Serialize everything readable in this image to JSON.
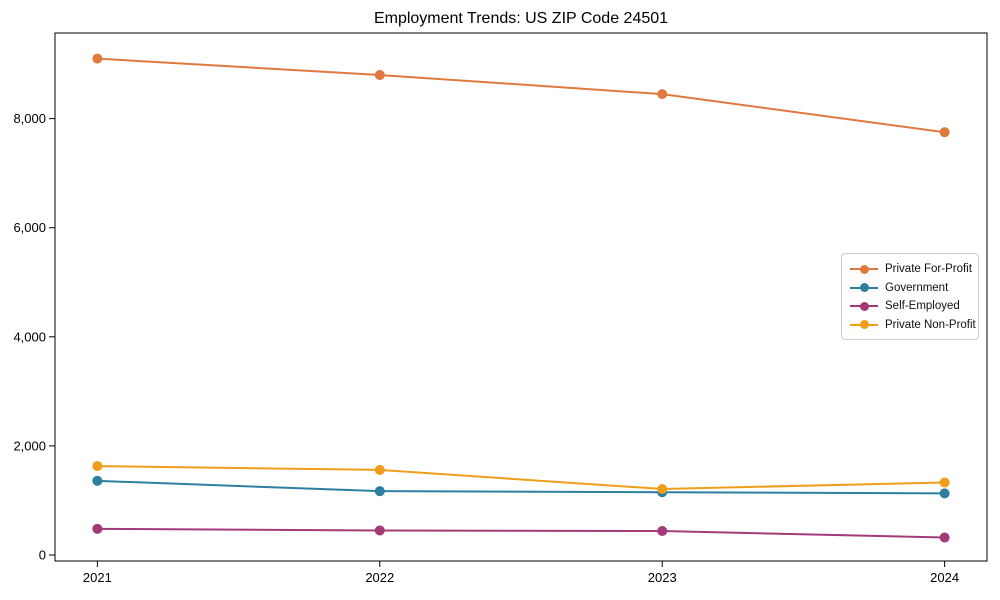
{
  "chart_data": {
    "type": "line",
    "title": "Employment Trends: US ZIP Code 24501",
    "categories": [
      "2021",
      "2022",
      "2023",
      "2024"
    ],
    "x": [
      2021,
      2022,
      2023,
      2024
    ],
    "series": [
      {
        "name": "Private For-Profit",
        "color": "#e0793f",
        "values": [
          9100,
          8800,
          8450,
          7750
        ]
      },
      {
        "name": "Government",
        "color": "#2e7f9f",
        "values": [
          1360,
          1170,
          1150,
          1130
        ]
      },
      {
        "name": "Self-Employed",
        "color": "#a23a78",
        "values": [
          480,
          450,
          440,
          320
        ]
      },
      {
        "name": "Private Non-Profit",
        "color": "#ef9e1b",
        "values": [
          1630,
          1560,
          1210,
          1330
        ]
      }
    ],
    "xlabel": "",
    "ylabel": "",
    "xlim": [
      2020.85,
      2024.15
    ],
    "ylim": [
      -110,
      9570
    ],
    "yticks": [
      0,
      2000,
      4000,
      6000,
      8000
    ],
    "ytick_labels": [
      "0",
      "2,000",
      "4,000",
      "6,000",
      "8,000"
    ],
    "grid": false,
    "legend_position": "center-right",
    "axis_color": "#000000",
    "legend_border_color": "#cccccc",
    "line_width": 2,
    "marker": "circle"
  }
}
